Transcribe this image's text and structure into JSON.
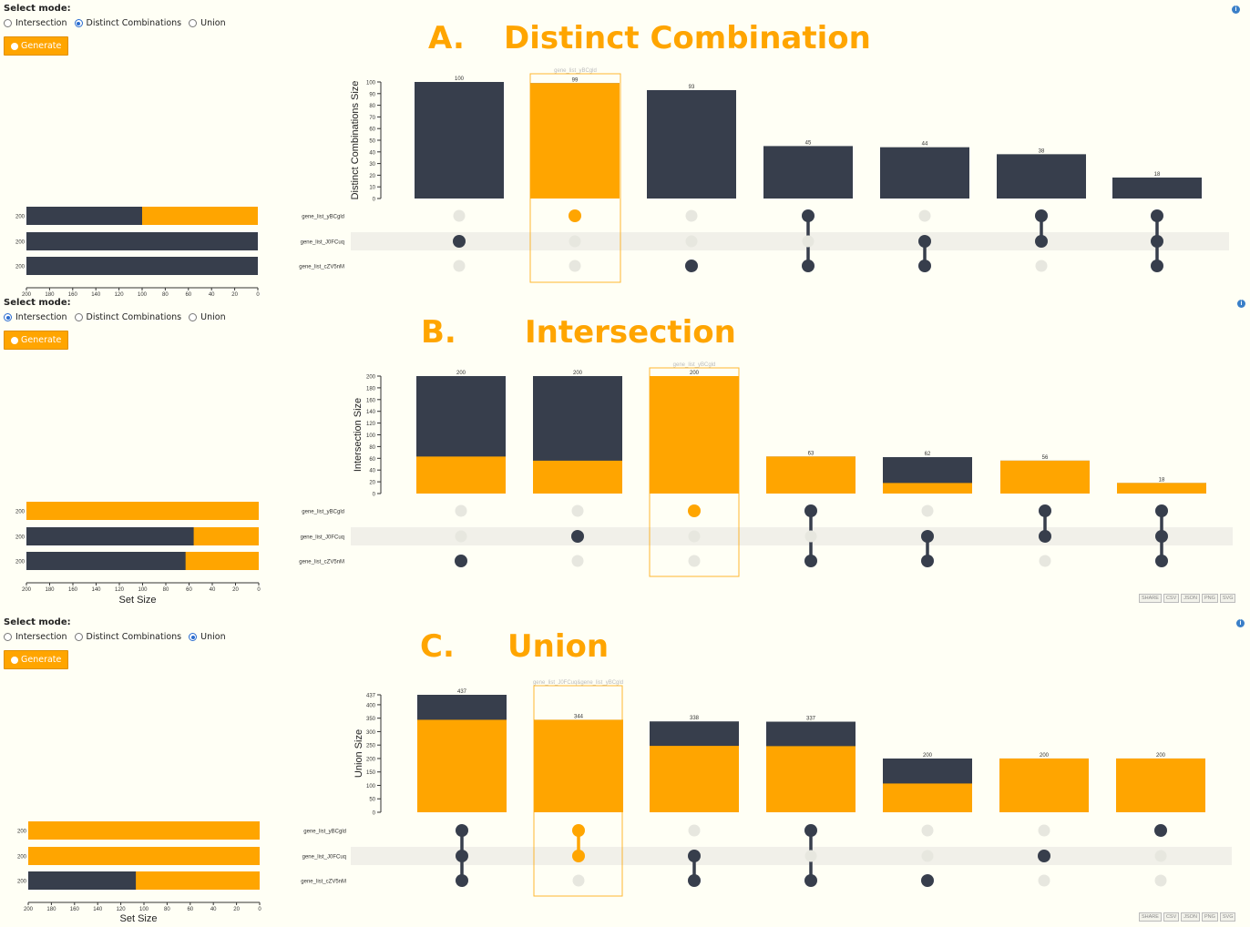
{
  "sets": [
    "gene_list_yBCgld",
    "gene_list_J0FCuq",
    "gene_list_cZV5nM"
  ],
  "colors": {
    "dark": "#373e4c",
    "orange": "#ffa500",
    "inactive": "#e7e7df",
    "stripe": "#f1f0e9"
  },
  "export_buttons": [
    "SHARE",
    "CSV",
    "JSON",
    "PNG",
    "SVG"
  ],
  "panels": [
    {
      "letter": "A.",
      "name": "Distinct Combination",
      "mode_title": "Select mode:",
      "modes": [
        "Intersection",
        "Distinct Combinations",
        "Union"
      ],
      "selected_mode": 1,
      "generate_label": "Generate",
      "ylabel": "Distinct Combinations Size",
      "xlabel": "",
      "hover_label": "gene_list_yBCgld",
      "show_exports": false
    },
    {
      "letter": "B.",
      "name": "Intersection",
      "mode_title": "Select mode:",
      "modes": [
        "Intersection",
        "Distinct Combinations",
        "Union"
      ],
      "selected_mode": 0,
      "generate_label": "Generate",
      "ylabel": "Intersection Size",
      "xlabel": "Set Size",
      "hover_label": "gene_list_yBCgld",
      "show_exports": true
    },
    {
      "letter": "C.",
      "name": "Union",
      "mode_title": "Select mode:",
      "modes": [
        "Intersection",
        "Distinct Combinations",
        "Union"
      ],
      "selected_mode": 2,
      "generate_label": "Generate",
      "ylabel": "Union Size",
      "xlabel": "Set Size",
      "hover_label": "gene_list_J0FCuq&gene_list_yBCgld",
      "show_exports": true
    }
  ],
  "chart_data": [
    {
      "type": "bar",
      "title": "Distinct Combination",
      "ylabel": "Distinct Combinations Size",
      "ylim": [
        0,
        100
      ],
      "yticks": [
        0,
        10,
        20,
        30,
        40,
        50,
        60,
        70,
        80,
        90,
        100
      ],
      "values": [
        100,
        99,
        93,
        45,
        44,
        38,
        18
      ],
      "highlight_values": [
        0,
        99,
        0,
        0,
        0,
        0,
        0
      ],
      "highlighted_column": 1,
      "membership": [
        [
          0,
          1,
          0
        ],
        [
          1,
          0,
          0
        ],
        [
          0,
          0,
          1
        ],
        [
          1,
          0,
          1
        ],
        [
          0,
          1,
          1
        ],
        [
          1,
          1,
          0
        ],
        [
          1,
          1,
          1
        ]
      ],
      "set_sizes": [
        200,
        200,
        200
      ],
      "set_highlight": [
        100,
        0,
        0
      ],
      "set_xlim": [
        0,
        200
      ],
      "set_xticks": [
        200,
        180,
        160,
        140,
        120,
        100,
        80,
        60,
        40,
        20,
        0
      ]
    },
    {
      "type": "bar",
      "title": "Intersection",
      "ylabel": "Intersection Size",
      "xlabel": "Set Size",
      "ylim": [
        0,
        200
      ],
      "yticks": [
        0,
        20,
        40,
        60,
        80,
        100,
        120,
        140,
        160,
        180,
        200
      ],
      "values": [
        200,
        200,
        200,
        63,
        62,
        56,
        18
      ],
      "highlight_values": [
        63,
        56,
        200,
        63,
        18,
        56,
        18
      ],
      "highlighted_column": 2,
      "membership": [
        [
          0,
          0,
          1
        ],
        [
          0,
          1,
          0
        ],
        [
          1,
          0,
          0
        ],
        [
          1,
          0,
          1
        ],
        [
          0,
          1,
          1
        ],
        [
          1,
          1,
          0
        ],
        [
          1,
          1,
          1
        ]
      ],
      "set_sizes": [
        200,
        200,
        200
      ],
      "set_highlight": [
        200,
        56,
        63
      ],
      "set_xlim": [
        0,
        200
      ],
      "set_xticks": [
        200,
        180,
        160,
        140,
        120,
        100,
        80,
        60,
        40,
        20,
        0
      ]
    },
    {
      "type": "bar",
      "title": "Union",
      "ylabel": "Union Size",
      "xlabel": "Set Size",
      "ylim": [
        0,
        437
      ],
      "yticks": [
        0,
        50,
        100,
        150,
        200,
        250,
        300,
        350,
        400,
        437
      ],
      "values": [
        437,
        344,
        338,
        337,
        200,
        200,
        200
      ],
      "highlight_values": [
        344,
        344,
        247,
        246,
        107,
        200,
        200
      ],
      "highlighted_column": 1,
      "membership": [
        [
          1,
          1,
          1
        ],
        [
          1,
          1,
          0
        ],
        [
          0,
          1,
          1
        ],
        [
          1,
          0,
          1
        ],
        [
          0,
          0,
          1
        ],
        [
          0,
          1,
          0
        ],
        [
          1,
          0,
          0
        ]
      ],
      "set_sizes": [
        200,
        200,
        200
      ],
      "set_highlight": [
        200,
        200,
        107
      ],
      "set_xlim": [
        0,
        200
      ],
      "set_xticks": [
        200,
        180,
        160,
        140,
        120,
        100,
        80,
        60,
        40,
        20,
        0
      ]
    }
  ]
}
